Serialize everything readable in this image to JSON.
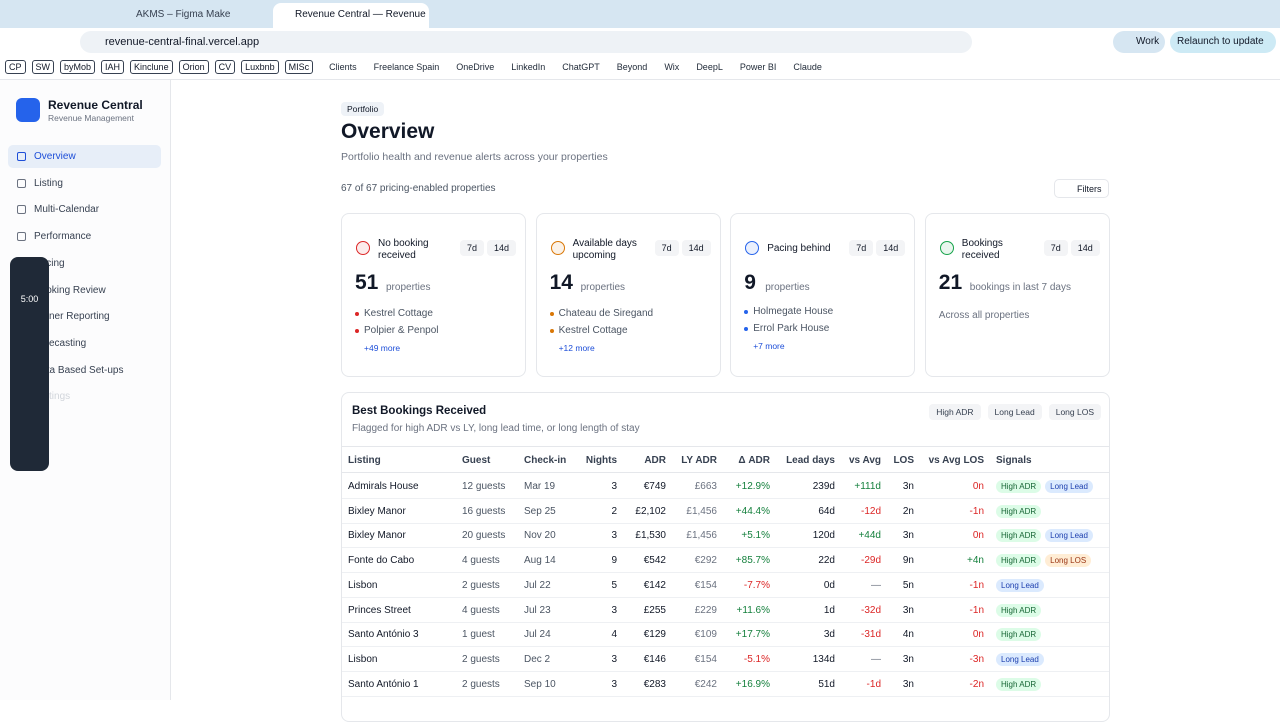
{
  "browser": {
    "tabs": [
      "AKMS – Figma Make",
      "Revenue Central — Revenue I"
    ],
    "url": "revenue-central-final.vercel.app",
    "profile": "Work",
    "relaunch": "Relaunch to update",
    "bookmark_chips": [
      "CP",
      "SW",
      "byMob",
      "IAH",
      "Kinclune",
      "Orion",
      "CV",
      "Luxbnb",
      "MISc"
    ],
    "bookmark_links": [
      "Clients",
      "Freelance Spain",
      "OneDrive",
      "LinkedIn",
      "ChatGPT",
      "Beyond",
      "Wix",
      "DeepL",
      "Power BI",
      "Claude"
    ]
  },
  "sidebar": {
    "title": "Revenue Central",
    "subtitle": "Revenue Management",
    "active": 0,
    "nav": [
      "Overview",
      "Listing",
      "Multi-Calendar",
      "Performance",
      "Pricing",
      "Booking Review",
      "Owner Reporting",
      "Forecasting",
      "Data Based Set-ups",
      "Settings"
    ]
  },
  "recorder": {
    "time": "5:00"
  },
  "header": {
    "breadcrumb": "Portfolio",
    "title": "Overview",
    "subtitle": "Portfolio health and revenue alerts across your properties",
    "count": "67 of 67 pricing-enabled properties",
    "filters": "Filters"
  },
  "cards": [
    {
      "title": "No booking received",
      "color": "#dc2626",
      "toggles": [
        "7d",
        "14d"
      ],
      "number": "51",
      "unit": "properties",
      "items": [
        "Kestrel Cottage",
        "Polpier & Penpol"
      ],
      "more": "+49 more"
    },
    {
      "title": "Available days upcoming",
      "color": "#d97706",
      "toggles": [
        "7d",
        "14d"
      ],
      "number": "14",
      "unit": "properties",
      "items": [
        "Chateau de Siregand",
        "Kestrel Cottage"
      ],
      "more": "+12 more"
    },
    {
      "title": "Pacing behind",
      "color": "#2563eb",
      "toggles": [
        "7d",
        "14d"
      ],
      "number": "9",
      "unit": "properties",
      "items": [
        "Holmegate House",
        "Errol Park House"
      ],
      "more": "+7 more"
    },
    {
      "title": "Bookings received",
      "color": "#16a34a",
      "toggles": [
        "7d",
        "14d"
      ],
      "number": "21",
      "unit": "bookings in last 7 days",
      "note": "Across all properties"
    }
  ],
  "table": {
    "title": "Best Bookings Received",
    "subtitle": "Flagged for high ADR vs LY, long lead time, or long length of stay",
    "chips": [
      "High ADR",
      "Long Lead",
      "Long LOS"
    ],
    "columns": [
      "Listing",
      "Guest",
      "Check-in",
      "Nights",
      "ADR",
      "LY ADR",
      "Δ ADR",
      "Lead days",
      "vs Avg",
      "LOS",
      "vs Avg LOS",
      "Signals"
    ],
    "rows": [
      [
        "Admirals House",
        "12 guests",
        "Mar 19",
        "3",
        "€749",
        "£663",
        "+12.9%",
        "239d",
        "+111d",
        "3n",
        "0n",
        [
          "High ADR",
          "Long Lead"
        ]
      ],
      [
        "Bixley Manor",
        "16 guests",
        "Sep 25",
        "2",
        "£2,102",
        "£1,456",
        "+44.4%",
        "64d",
        "-12d",
        "2n",
        "-1n",
        [
          "High ADR"
        ]
      ],
      [
        "Bixley Manor",
        "20 guests",
        "Nov 20",
        "3",
        "£1,530",
        "£1,456",
        "+5.1%",
        "120d",
        "+44d",
        "3n",
        "0n",
        [
          "High ADR",
          "Long Lead"
        ]
      ],
      [
        "Fonte do Cabo",
        "4 guests",
        "Aug 14",
        "9",
        "€542",
        "€292",
        "+85.7%",
        "22d",
        "-29d",
        "9n",
        "+4n",
        [
          "High ADR",
          "Long LOS"
        ]
      ],
      [
        "Lisbon",
        "2 guests",
        "Jul 22",
        "5",
        "€142",
        "€154",
        "-7.7%",
        "0d",
        "—",
        "5n",
        "-1n",
        [
          "Long Lead"
        ]
      ],
      [
        "Princes Street",
        "4 guests",
        "Jul 23",
        "3",
        "£255",
        "£229",
        "+11.6%",
        "1d",
        "-32d",
        "3n",
        "-1n",
        [
          "High ADR"
        ]
      ],
      [
        "Santo António 3",
        "1 guest",
        "Jul 24",
        "4",
        "€129",
        "€109",
        "+17.7%",
        "3d",
        "-31d",
        "4n",
        "0n",
        [
          "High ADR"
        ]
      ],
      [
        "Lisbon",
        "2 guests",
        "Dec 2",
        "3",
        "€146",
        "€154",
        "-5.1%",
        "134d",
        "—",
        "3n",
        "-3n",
        [
          "Long Lead"
        ]
      ],
      [
        "Santo António 1",
        "2 guests",
        "Sep 10",
        "3",
        "€283",
        "€242",
        "+16.9%",
        "51d",
        "-1d",
        "3n",
        "-2n",
        [
          "High ADR"
        ]
      ]
    ]
  }
}
